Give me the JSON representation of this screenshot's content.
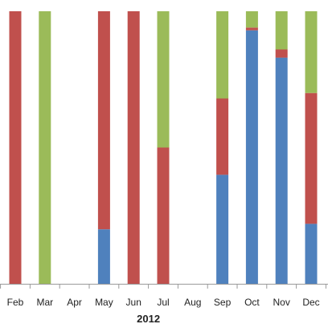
{
  "chart_data": {
    "type": "bar",
    "stacked": true,
    "percent_stacked": true,
    "categories": [
      "Feb",
      "Mar",
      "Apr",
      "May",
      "Jun",
      "Jul",
      "Aug",
      "Sep",
      "Oct",
      "Nov",
      "Dec"
    ],
    "group_label": "2012",
    "series": [
      {
        "color": "#4f81bd",
        "values": [
          0,
          0,
          0,
          20,
          0,
          0,
          0,
          40,
          93,
          83,
          22
        ]
      },
      {
        "color": "#c0504d",
        "values": [
          100,
          0,
          0,
          80,
          100,
          50,
          0,
          28,
          1,
          3,
          48
        ]
      },
      {
        "color": "#9bbb59",
        "values": [
          0,
          100,
          0,
          0,
          0,
          50,
          0,
          32,
          6,
          14,
          30
        ]
      }
    ],
    "ylim": [
      0,
      100
    ],
    "grid": false,
    "legend": "none",
    "title": "",
    "xlabel": "",
    "ylabel": ""
  }
}
